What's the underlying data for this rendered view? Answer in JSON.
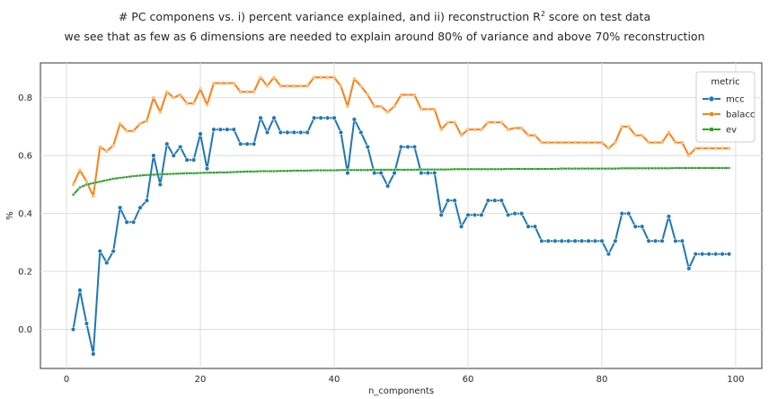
{
  "title": {
    "line1_prefix": "# PC componens vs. i) percent variance explained, and ii) reconstruction R",
    "line1_sup": "2",
    "line1_suffix": " score on test data",
    "line2": "we see that as few as 6 dimensions are needed to explain around 80% of variance and above 70% reconstruction"
  },
  "chart_data": {
    "type": "line",
    "xlabel": "n_components",
    "ylabel": "%",
    "xlim": [
      -3.9,
      103.9
    ],
    "ylim": [
      -0.135,
      0.92
    ],
    "xticks": [
      0,
      20,
      40,
      60,
      80,
      100
    ],
    "yticks": [
      0.0,
      0.2,
      0.4,
      0.6,
      0.8
    ],
    "grid": true,
    "legend": {
      "title": "metric",
      "placement": "top-right"
    },
    "x": [
      1,
      2,
      3,
      4,
      5,
      6,
      7,
      8,
      9,
      10,
      11,
      12,
      13,
      14,
      15,
      16,
      17,
      18,
      19,
      20,
      21,
      22,
      23,
      24,
      25,
      26,
      27,
      28,
      29,
      30,
      31,
      32,
      33,
      34,
      35,
      36,
      37,
      38,
      39,
      40,
      41,
      42,
      43,
      44,
      45,
      46,
      47,
      48,
      49,
      50,
      51,
      52,
      53,
      54,
      55,
      56,
      57,
      58,
      59,
      60,
      61,
      62,
      63,
      64,
      65,
      66,
      67,
      68,
      69,
      70,
      71,
      72,
      73,
      74,
      75,
      76,
      77,
      78,
      79,
      80,
      81,
      82,
      83,
      84,
      85,
      86,
      87,
      88,
      89,
      90,
      91,
      92,
      93,
      94,
      95,
      96,
      97,
      98,
      99
    ],
    "series": [
      {
        "name": "mcc",
        "color": "#1f77b4",
        "marker": "circle",
        "values": [
          0.0,
          0.135,
          0.02,
          -0.085,
          0.27,
          0.23,
          0.27,
          0.42,
          0.37,
          0.37,
          0.42,
          0.445,
          0.6,
          0.5,
          0.64,
          0.6,
          0.63,
          0.585,
          0.585,
          0.675,
          0.555,
          0.69,
          0.69,
          0.69,
          0.69,
          0.64,
          0.64,
          0.64,
          0.73,
          0.68,
          0.73,
          0.68,
          0.68,
          0.68,
          0.68,
          0.68,
          0.73,
          0.73,
          0.73,
          0.73,
          0.68,
          0.54,
          0.725,
          0.68,
          0.63,
          0.54,
          0.54,
          0.495,
          0.54,
          0.63,
          0.63,
          0.63,
          0.54,
          0.54,
          0.54,
          0.395,
          0.445,
          0.445,
          0.355,
          0.395,
          0.395,
          0.395,
          0.445,
          0.445,
          0.445,
          0.395,
          0.4,
          0.4,
          0.355,
          0.355,
          0.305,
          0.305,
          0.305,
          0.305,
          0.305,
          0.305,
          0.305,
          0.305,
          0.305,
          0.305,
          0.26,
          0.305,
          0.4,
          0.4,
          0.355,
          0.355,
          0.305,
          0.305,
          0.305,
          0.39,
          0.305,
          0.305,
          0.21,
          0.26,
          0.26,
          0.26,
          0.26,
          0.26,
          0.26
        ]
      },
      {
        "name": "balacc",
        "color": "#ff7f0e",
        "marker": "x",
        "values": [
          0.5,
          0.55,
          0.51,
          0.46,
          0.63,
          0.615,
          0.635,
          0.71,
          0.685,
          0.685,
          0.71,
          0.72,
          0.8,
          0.75,
          0.82,
          0.8,
          0.81,
          0.78,
          0.78,
          0.83,
          0.775,
          0.85,
          0.85,
          0.85,
          0.85,
          0.82,
          0.82,
          0.82,
          0.87,
          0.84,
          0.87,
          0.84,
          0.84,
          0.84,
          0.84,
          0.84,
          0.87,
          0.87,
          0.87,
          0.87,
          0.84,
          0.77,
          0.865,
          0.84,
          0.81,
          0.77,
          0.77,
          0.75,
          0.77,
          0.81,
          0.81,
          0.81,
          0.76,
          0.76,
          0.76,
          0.69,
          0.715,
          0.715,
          0.67,
          0.69,
          0.69,
          0.69,
          0.715,
          0.715,
          0.715,
          0.69,
          0.695,
          0.695,
          0.67,
          0.67,
          0.645,
          0.645,
          0.645,
          0.645,
          0.645,
          0.645,
          0.645,
          0.645,
          0.645,
          0.645,
          0.625,
          0.645,
          0.7,
          0.7,
          0.67,
          0.67,
          0.645,
          0.645,
          0.645,
          0.68,
          0.645,
          0.645,
          0.6,
          0.625,
          0.625,
          0.625,
          0.625,
          0.625,
          0.625
        ]
      },
      {
        "name": "ev",
        "color": "#2ca02c",
        "marker": "square",
        "values": [
          0.465,
          0.49,
          0.5,
          0.505,
          0.51,
          0.515,
          0.52,
          0.523,
          0.526,
          0.529,
          0.531,
          0.533,
          0.534,
          0.535,
          0.536,
          0.537,
          0.538,
          0.539,
          0.539,
          0.54,
          0.541,
          0.541,
          0.542,
          0.542,
          0.543,
          0.544,
          0.545,
          0.545,
          0.546,
          0.546,
          0.546,
          0.547,
          0.547,
          0.548,
          0.548,
          0.548,
          0.549,
          0.549,
          0.549,
          0.549,
          0.55,
          0.55,
          0.55,
          0.55,
          0.55,
          0.551,
          0.551,
          0.551,
          0.551,
          0.551,
          0.551,
          0.551,
          0.552,
          0.552,
          0.552,
          0.552,
          0.552,
          0.553,
          0.553,
          0.553,
          0.553,
          0.553,
          0.553,
          0.553,
          0.553,
          0.554,
          0.554,
          0.554,
          0.554,
          0.554,
          0.554,
          0.554,
          0.554,
          0.555,
          0.555,
          0.555,
          0.555,
          0.555,
          0.555,
          0.555,
          0.555,
          0.555,
          0.556,
          0.556,
          0.556,
          0.556,
          0.556,
          0.556,
          0.556,
          0.556,
          0.557,
          0.557,
          0.557,
          0.557,
          0.557,
          0.557,
          0.557,
          0.557,
          0.557
        ]
      }
    ]
  }
}
